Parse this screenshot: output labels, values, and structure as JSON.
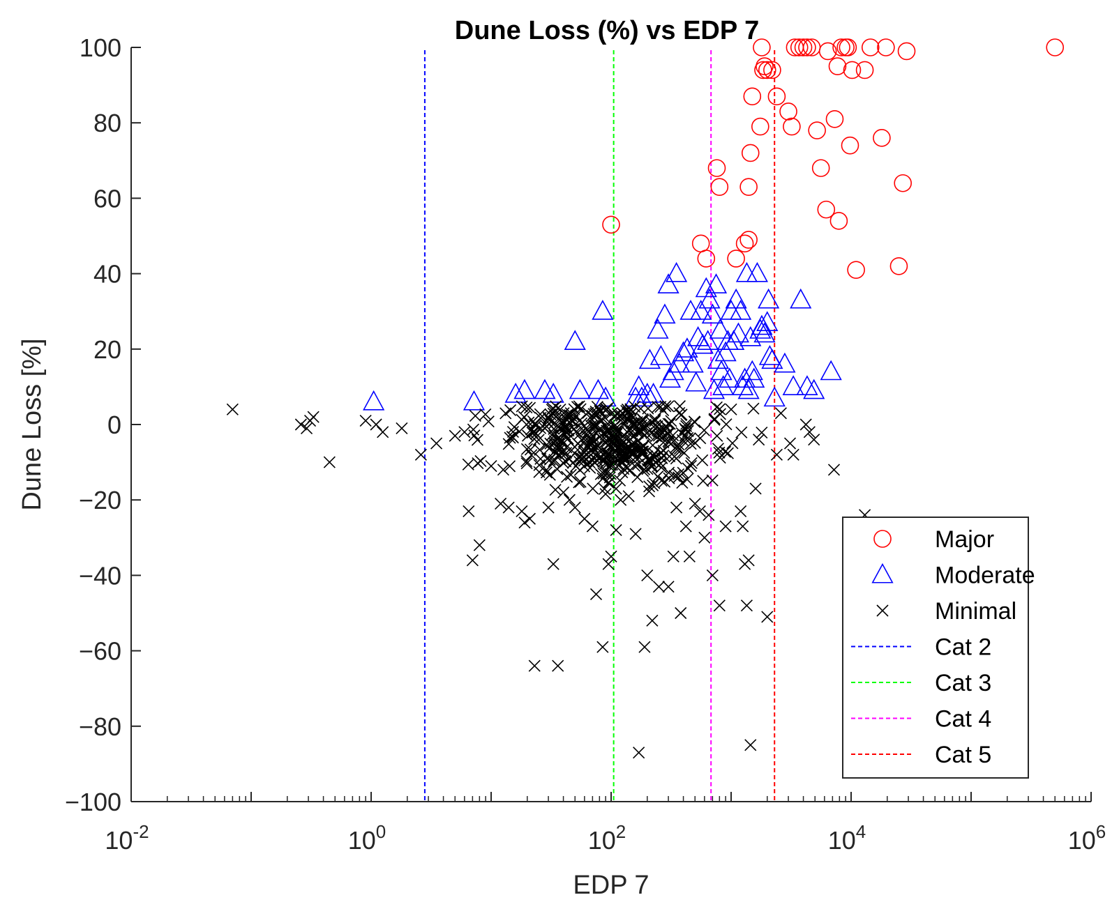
{
  "chart_data": {
    "type": "scatter",
    "title": "Dune Loss (%) vs EDP 7",
    "xlabel": "EDP 7",
    "ylabel": "Dune Loss [%]",
    "xscale": "log",
    "xlim": [
      0.01,
      1000000
    ],
    "ylim": [
      -100,
      100
    ],
    "x_ticks": [
      {
        "base": "10",
        "exp": "-2",
        "value": 0.01
      },
      {
        "base": "10",
        "exp": "0",
        "value": 1
      },
      {
        "base": "10",
        "exp": "2",
        "value": 100
      },
      {
        "base": "10",
        "exp": "4",
        "value": 10000
      },
      {
        "base": "10",
        "exp": "6",
        "value": 1000000
      }
    ],
    "y_ticks": [
      "100",
      "80",
      "60",
      "40",
      "20",
      "0",
      "−20",
      "−40",
      "−60",
      "−80",
      "−100"
    ],
    "grid": false,
    "legend_position": "bottom-right",
    "series": [
      {
        "name": "Major",
        "marker": "circle",
        "color": "#ff0000",
        "points": [
          [
            100,
            53
          ],
          [
            560,
            48
          ],
          [
            620,
            44
          ],
          [
            760,
            68
          ],
          [
            800,
            63
          ],
          [
            1100,
            44
          ],
          [
            1300,
            48
          ],
          [
            1400,
            49
          ],
          [
            1400,
            63
          ],
          [
            1450,
            72
          ],
          [
            1500,
            87
          ],
          [
            1750,
            79
          ],
          [
            1800,
            100
          ],
          [
            1850,
            94
          ],
          [
            1900,
            95
          ],
          [
            2000,
            94
          ],
          [
            2200,
            94
          ],
          [
            2400,
            87
          ],
          [
            3000,
            83
          ],
          [
            3200,
            79
          ],
          [
            3400,
            100
          ],
          [
            3700,
            100
          ],
          [
            4000,
            100
          ],
          [
            4300,
            100
          ],
          [
            4700,
            100
          ],
          [
            5200,
            78
          ],
          [
            5600,
            68
          ],
          [
            6200,
            57
          ],
          [
            6400,
            99
          ],
          [
            7300,
            81
          ],
          [
            7700,
            95
          ],
          [
            7900,
            54
          ],
          [
            8300,
            100
          ],
          [
            9000,
            100
          ],
          [
            9400,
            100
          ],
          [
            9800,
            74
          ],
          [
            10200,
            94
          ],
          [
            11000,
            41
          ],
          [
            13000,
            94
          ],
          [
            14500,
            100
          ],
          [
            18000,
            76
          ],
          [
            19500,
            100
          ],
          [
            25000,
            42
          ],
          [
            27000,
            64
          ],
          [
            29000,
            99
          ],
          [
            500000,
            100
          ]
        ]
      },
      {
        "name": "Moderate",
        "marker": "triangle",
        "color": "#0000ff",
        "points": [
          [
            1.05,
            6
          ],
          [
            7.2,
            6
          ],
          [
            16,
            8
          ],
          [
            19,
            9
          ],
          [
            28,
            9
          ],
          [
            33,
            8
          ],
          [
            50,
            22
          ],
          [
            55,
            9
          ],
          [
            78,
            9
          ],
          [
            85,
            30
          ],
          [
            90,
            7
          ],
          [
            160,
            7
          ],
          [
            170,
            10
          ],
          [
            180,
            7
          ],
          [
            200,
            8
          ],
          [
            210,
            17
          ],
          [
            225,
            8
          ],
          [
            245,
            25
          ],
          [
            260,
            18
          ],
          [
            280,
            29
          ],
          [
            300,
            37
          ],
          [
            310,
            12
          ],
          [
            330,
            14
          ],
          [
            350,
            40
          ],
          [
            370,
            16
          ],
          [
            400,
            19
          ],
          [
            430,
            20
          ],
          [
            460,
            30
          ],
          [
            480,
            16
          ],
          [
            510,
            11
          ],
          [
            530,
            23
          ],
          [
            560,
            30
          ],
          [
            580,
            21
          ],
          [
            620,
            36
          ],
          [
            640,
            22
          ],
          [
            660,
            33
          ],
          [
            700,
            29
          ],
          [
            720,
            9
          ],
          [
            750,
            37
          ],
          [
            780,
            17
          ],
          [
            810,
            25
          ],
          [
            830,
            14
          ],
          [
            860,
            10
          ],
          [
            900,
            19
          ],
          [
            940,
            22
          ],
          [
            970,
            12
          ],
          [
            1000,
            30
          ],
          [
            1050,
            22
          ],
          [
            1100,
            33
          ],
          [
            1150,
            24
          ],
          [
            1200,
            30
          ],
          [
            1250,
            10
          ],
          [
            1300,
            12
          ],
          [
            1350,
            40
          ],
          [
            1400,
            9
          ],
          [
            1450,
            23
          ],
          [
            1500,
            14
          ],
          [
            1550,
            12
          ],
          [
            1650,
            40
          ],
          [
            1750,
            25
          ],
          [
            1800,
            26
          ],
          [
            1900,
            24
          ],
          [
            2000,
            27
          ],
          [
            2050,
            33
          ],
          [
            2100,
            18
          ],
          [
            2200,
            17
          ],
          [
            2300,
            7
          ],
          [
            2800,
            16
          ],
          [
            3300,
            10
          ],
          [
            3800,
            33
          ],
          [
            4300,
            10
          ],
          [
            4900,
            9
          ],
          [
            6800,
            14
          ]
        ]
      },
      {
        "name": "Minimal",
        "marker": "x",
        "color": "#000000",
        "seed": 7,
        "cluster": {
          "count": 500,
          "x_range": [
            4,
            2500
          ],
          "y_center": -4,
          "y_spread": 6
        },
        "points": [
          [
            0.07,
            4
          ],
          [
            0.26,
            0
          ],
          [
            0.29,
            -1
          ],
          [
            0.31,
            1
          ],
          [
            0.33,
            2
          ],
          [
            0.45,
            -10
          ],
          [
            0.9,
            1
          ],
          [
            1.1,
            0
          ],
          [
            1.25,
            -2
          ],
          [
            1.8,
            -1
          ],
          [
            2.6,
            -8
          ],
          [
            3.5,
            -5
          ],
          [
            5,
            -3
          ],
          [
            6,
            -2
          ],
          [
            6.5,
            -23
          ],
          [
            7,
            -36
          ],
          [
            8,
            -32
          ],
          [
            10,
            -11
          ],
          [
            12,
            -21
          ],
          [
            14,
            -22
          ],
          [
            18,
            -23
          ],
          [
            19,
            -26
          ],
          [
            21,
            -25
          ],
          [
            23,
            -64
          ],
          [
            30,
            -22
          ],
          [
            33,
            -37
          ],
          [
            36,
            -64
          ],
          [
            40,
            -18
          ],
          [
            45,
            -20
          ],
          [
            50,
            -22
          ],
          [
            60,
            -25
          ],
          [
            70,
            -27
          ],
          [
            75,
            -45
          ],
          [
            85,
            -59
          ],
          [
            95,
            -37
          ],
          [
            100,
            -35
          ],
          [
            110,
            -28
          ],
          [
            120,
            -20
          ],
          [
            140,
            -19
          ],
          [
            160,
            -29
          ],
          [
            170,
            -87
          ],
          [
            190,
            -59
          ],
          [
            200,
            -40
          ],
          [
            220,
            -52
          ],
          [
            250,
            -43
          ],
          [
            300,
            -43
          ],
          [
            330,
            -35
          ],
          [
            350,
            -22
          ],
          [
            380,
            -50
          ],
          [
            420,
            -27
          ],
          [
            450,
            -35
          ],
          [
            500,
            -21
          ],
          [
            550,
            -23
          ],
          [
            600,
            -30
          ],
          [
            650,
            -24
          ],
          [
            700,
            -40
          ],
          [
            800,
            -48
          ],
          [
            900,
            -27
          ],
          [
            1000,
            4
          ],
          [
            1200,
            -23
          ],
          [
            1250,
            -27
          ],
          [
            1300,
            -37
          ],
          [
            1350,
            -48
          ],
          [
            1400,
            -36
          ],
          [
            1450,
            -85
          ],
          [
            1600,
            -17
          ],
          [
            1700,
            -4
          ],
          [
            2000,
            -51
          ],
          [
            2400,
            -8
          ],
          [
            2600,
            3
          ],
          [
            3100,
            -5
          ],
          [
            3300,
            -8
          ],
          [
            4200,
            0
          ],
          [
            4500,
            -2
          ],
          [
            4900,
            -4
          ],
          [
            7200,
            -12
          ],
          [
            13000,
            -24
          ]
        ]
      },
      {
        "name": "Cat 2",
        "type": "vline",
        "x": 2.8,
        "color": "#0000ff"
      },
      {
        "name": "Cat 3",
        "type": "vline",
        "x": 105,
        "color": "#00ff00"
      },
      {
        "name": "Cat 4",
        "type": "vline",
        "x": 680,
        "color": "#ff00ff"
      },
      {
        "name": "Cat 5",
        "type": "vline",
        "x": 2300,
        "color": "#ff0000"
      }
    ]
  }
}
